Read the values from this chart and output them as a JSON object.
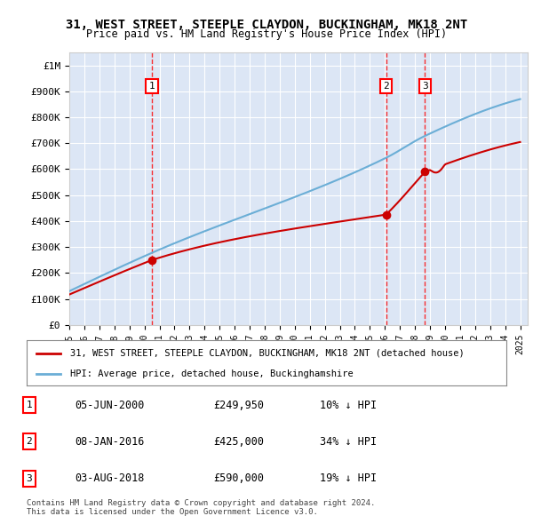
{
  "title": "31, WEST STREET, STEEPLE CLAYDON, BUCKINGHAM, MK18 2NT",
  "subtitle": "Price paid vs. HM Land Registry's House Price Index (HPI)",
  "ylabel": "",
  "background_color": "#f0f4ff",
  "plot_bg": "#e8eef8",
  "legend_label_red": "31, WEST STREET, STEEPLE CLAYDON, BUCKINGHAM, MK18 2NT (detached house)",
  "legend_label_blue": "HPI: Average price, detached house, Buckinghamshire",
  "footer": "Contains HM Land Registry data © Crown copyright and database right 2024.\nThis data is licensed under the Open Government Licence v3.0.",
  "sale_markers": [
    {
      "num": 1,
      "date": "2000-06-05",
      "price": 249950,
      "pct": "10%",
      "label": "05-JUN-2000",
      "price_str": "£249,950"
    },
    {
      "num": 2,
      "date": "2016-01-08",
      "price": 425000,
      "pct": "34%",
      "label": "08-JAN-2016",
      "price_str": "£425,000"
    },
    {
      "num": 3,
      "date": "2018-08-03",
      "price": 590000,
      "pct": "19%",
      "label": "03-AUG-2018",
      "price_str": "£590,000"
    }
  ],
  "ylim": [
    0,
    1050000
  ],
  "yticks": [
    0,
    100000,
    200000,
    300000,
    400000,
    500000,
    600000,
    700000,
    800000,
    900000,
    1000000
  ],
  "ytick_labels": [
    "£0",
    "£100K",
    "£200K",
    "£300K",
    "£400K",
    "£500K",
    "£600K",
    "£700K",
    "£800K",
    "£900K",
    "£1M"
  ]
}
